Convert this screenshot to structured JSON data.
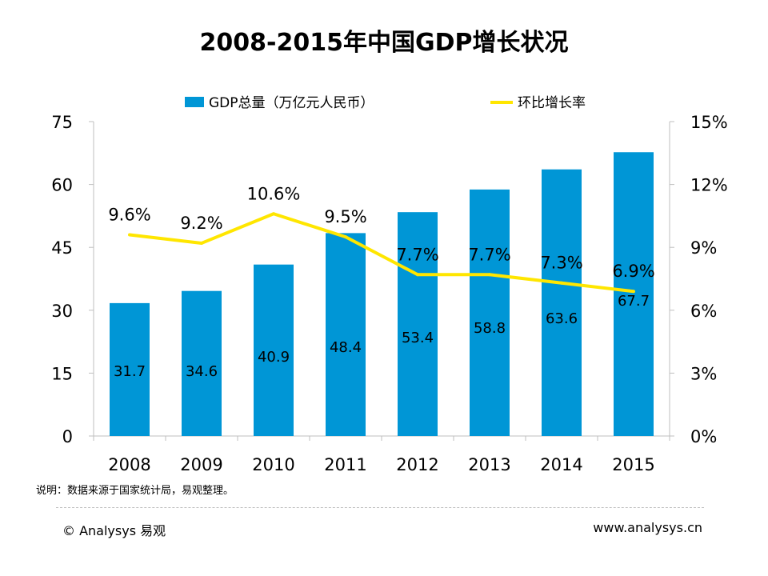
{
  "chart_data": {
    "type": "bar",
    "title": "2008-2015年中国GDP增长状况",
    "categories": [
      "2008",
      "2009",
      "2010",
      "2011",
      "2012",
      "2013",
      "2014",
      "2015"
    ],
    "series": [
      {
        "name": "GDP总量（万亿元人民币）",
        "type": "bar",
        "axis": "left",
        "color": "#0096d6",
        "values": [
          31.7,
          34.6,
          40.9,
          48.4,
          53.4,
          58.8,
          63.6,
          67.7
        ],
        "labels": [
          "31.7",
          "34.6",
          "40.9",
          "48.4",
          "53.4",
          "58.8",
          "63.6",
          "67.7"
        ]
      },
      {
        "name": "环比增长率",
        "type": "line",
        "axis": "right",
        "color": "#ffe600",
        "values": [
          9.6,
          9.2,
          10.6,
          9.5,
          7.7,
          7.7,
          7.3,
          6.9
        ],
        "labels": [
          "9.6%",
          "9.2%",
          "10.6%",
          "9.5%",
          "7.7%",
          "7.7%",
          "7.3%",
          "6.9%"
        ]
      }
    ],
    "y_left": {
      "min": 0,
      "max": 75,
      "ticks": [
        "0",
        "15",
        "30",
        "45",
        "60",
        "75"
      ]
    },
    "y_right": {
      "min": 0,
      "max": 15,
      "ticks": [
        "0%",
        "3%",
        "6%",
        "9%",
        "12%",
        "15%"
      ]
    },
    "legend_position": "top",
    "grid": false
  },
  "footer": {
    "source": "说明：数据来源于国家统计局，易观整理。",
    "copyright": "© Analysys 易观",
    "website": "www.analysys.cn"
  }
}
